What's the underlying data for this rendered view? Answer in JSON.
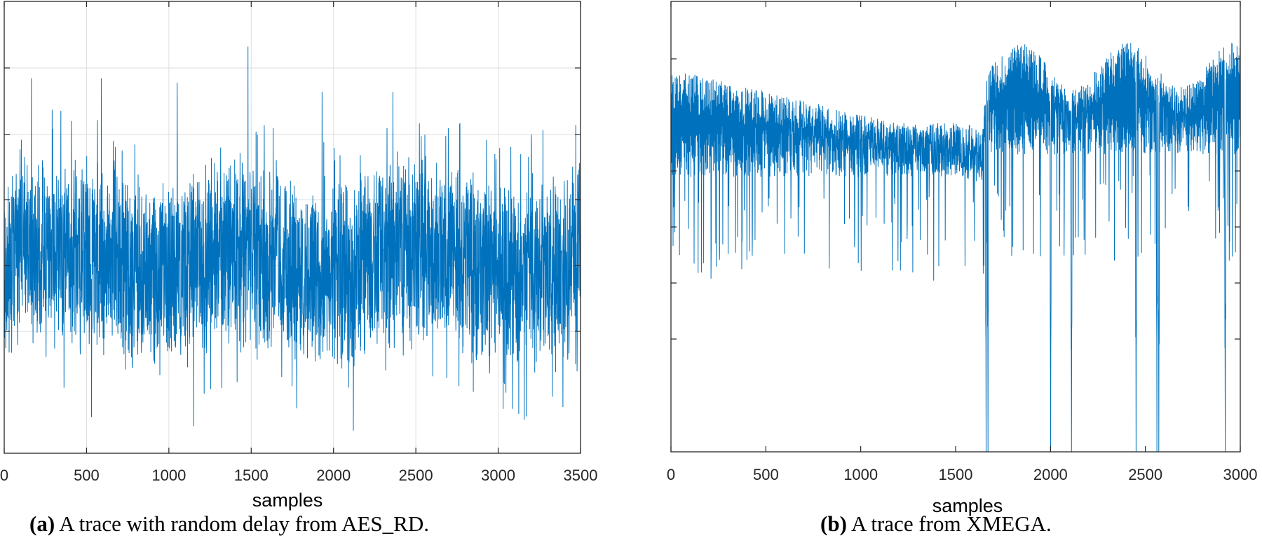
{
  "chart_data": [
    {
      "type": "line",
      "panel": "a",
      "title": "",
      "xlabel": "samples",
      "ylabel": "",
      "xlim": [
        0,
        3500
      ],
      "xticks": [
        0,
        500,
        1000,
        1500,
        2000,
        2500,
        3000,
        3500
      ],
      "grid": true,
      "caption_letter": "(a)",
      "caption_text": "A trace with random delay from AES_RD.",
      "series_color": "#0072BD",
      "series": [
        {
          "name": "",
          "n_points": 3500,
          "y_range": [
            0.05,
            0.99
          ],
          "y_center": 0.42,
          "notable_peaks": [
            {
              "x": 165,
              "y": 0.83
            },
            {
              "x": 590,
              "y": 0.83
            },
            {
              "x": 1050,
              "y": 0.82
            },
            {
              "x": 1480,
              "y": 0.9
            },
            {
              "x": 1930,
              "y": 0.8
            },
            {
              "x": 2360,
              "y": 0.8
            }
          ],
          "notable_dips": [
            {
              "x": 2120,
              "y": 0.05
            },
            {
              "x": 1150,
              "y": 0.06
            },
            {
              "x": 530,
              "y": 0.08
            }
          ]
        }
      ]
    },
    {
      "type": "line",
      "panel": "b",
      "title": "",
      "xlabel": "samples",
      "ylabel": "",
      "xlim": [
        0,
        3000
      ],
      "xticks": [
        0,
        500,
        1000,
        1500,
        2000,
        2500,
        3000
      ],
      "grid": false,
      "caption_letter": "(b)",
      "caption_text": "A trace from XMEGA.",
      "series_color": "#0072BD",
      "series": [
        {
          "name": "",
          "n_points": 3000,
          "y_range": [
            0.0,
            0.98
          ],
          "segment_change_x": 1650,
          "deep_dips_x": [
            1660,
            1670,
            2000,
            2110,
            2450,
            2560,
            2570,
            2920
          ]
        }
      ]
    }
  ]
}
